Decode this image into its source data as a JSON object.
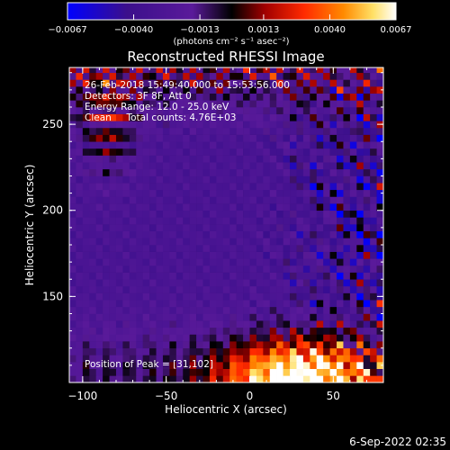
{
  "chart_data": {
    "type": "heatmap",
    "title": "Reconstructed RHESSI Image",
    "xlabel": "Heliocentric X (arcsec)",
    "ylabel": "Heliocentric Y (arcsec)",
    "xlim": [
      -108,
      80
    ],
    "ylim": [
      100,
      283
    ],
    "xticks": [
      -100,
      -50,
      0,
      50
    ],
    "xtick_labels": [
      "−100",
      "−50",
      "0",
      "50"
    ],
    "yticks": [
      150,
      200,
      250
    ],
    "ytick_labels": [
      "150",
      "200",
      "250"
    ],
    "colorbar": {
      "range": [
        -0.0067,
        0.0067
      ],
      "ticks": [
        -0.0067,
        -0.004,
        -0.0013,
        0.0013,
        0.004,
        0.0067
      ],
      "tick_labels": [
        "−0.0067",
        "−0.0040",
        "−0.0013",
        "0.0013",
        "0.0040",
        "0.0067"
      ],
      "units_label": "(photons cm⁻² s⁻¹ asec⁻²)",
      "colors": [
        "#0000ff",
        "#3b0f8c",
        "#5a1a9a",
        "#000000",
        "#a00000",
        "#ff2a00",
        "#ff8a00",
        "#ffe066",
        "#ffffff"
      ]
    },
    "annotations": [
      "26-Feb-2018 15:49:40.000 to 15:53:56.000",
      "Detectors: 3F 8F, Att 0",
      "Energy Range: 12.0 - 25.0 keV",
      "Clean     Total counts: 4.76E+03"
    ],
    "peak_label": "Position of Peak = [31,102]",
    "peak_position": [
      31,
      102
    ],
    "pixel_size_arcsec": 4,
    "grid": false
  },
  "footer": {
    "timestamp": "6-Sep-2022 02:35"
  }
}
